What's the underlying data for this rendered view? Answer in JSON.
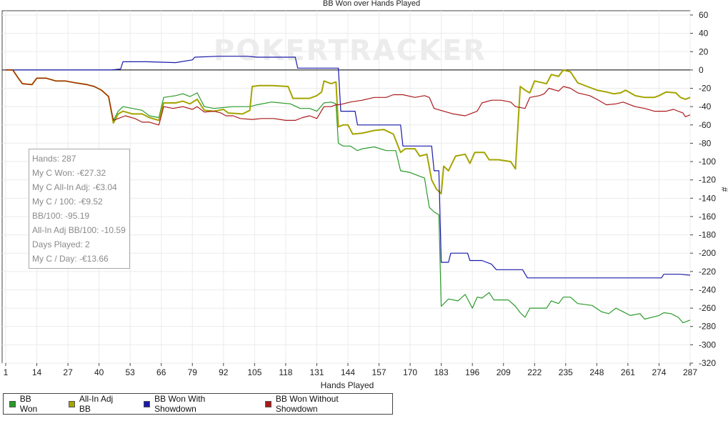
{
  "chart_data": {
    "type": "line",
    "title": "BB Won over Hands Played",
    "xlabel": "Hands Played",
    "ylabel": "#",
    "xlim": [
      1,
      287
    ],
    "ylim": [
      -320,
      60
    ],
    "x_ticks": [
      1,
      14,
      27,
      40,
      53,
      66,
      79,
      92,
      105,
      118,
      131,
      144,
      157,
      170,
      183,
      196,
      209,
      222,
      235,
      248,
      261,
      274,
      287
    ],
    "y_ticks": [
      60,
      40,
      20,
      0,
      -20,
      -40,
      -60,
      -80,
      -100,
      -120,
      -140,
      -160,
      -180,
      -200,
      -220,
      -240,
      -260,
      -280,
      -300,
      -320
    ],
    "grid": true,
    "watermark": "POKERTRACKER",
    "series": [
      {
        "name": "BB Won",
        "color": "#2a9a2a",
        "points": [
          [
            1,
            0
          ],
          [
            4,
            0
          ],
          [
            6,
            -8
          ],
          [
            8,
            -15
          ],
          [
            12,
            -16
          ],
          [
            14,
            -9
          ],
          [
            18,
            -9
          ],
          [
            22,
            -12
          ],
          [
            26,
            -12
          ],
          [
            30,
            -14
          ],
          [
            35,
            -16
          ],
          [
            38,
            -18
          ],
          [
            41,
            -22
          ],
          [
            44,
            -29
          ],
          [
            46,
            -55
          ],
          [
            48,
            -45
          ],
          [
            50,
            -40
          ],
          [
            54,
            -42
          ],
          [
            58,
            -44
          ],
          [
            61,
            -50
          ],
          [
            65,
            -52
          ],
          [
            67,
            -30
          ],
          [
            72,
            -28
          ],
          [
            75,
            -26
          ],
          [
            78,
            -29
          ],
          [
            81,
            -25
          ],
          [
            84,
            -40
          ],
          [
            88,
            -42
          ],
          [
            96,
            -40
          ],
          [
            103,
            -40
          ],
          [
            106,
            -38
          ],
          [
            112,
            -35
          ],
          [
            120,
            -37
          ],
          [
            124,
            -42
          ],
          [
            128,
            -42
          ],
          [
            131,
            -45
          ],
          [
            134,
            -36
          ],
          [
            137,
            -35
          ],
          [
            139,
            -37
          ],
          [
            140,
            -80
          ],
          [
            142,
            -83
          ],
          [
            145,
            -83
          ],
          [
            148,
            -88
          ],
          [
            150,
            -86
          ],
          [
            155,
            -84
          ],
          [
            160,
            -88
          ],
          [
            164,
            -88
          ],
          [
            166,
            -110
          ],
          [
            170,
            -112
          ],
          [
            173,
            -115
          ],
          [
            176,
            -118
          ],
          [
            178,
            -150
          ],
          [
            180,
            -155
          ],
          [
            182,
            -158
          ],
          [
            183,
            -258
          ],
          [
            186,
            -250
          ],
          [
            190,
            -252
          ],
          [
            193,
            -245
          ],
          [
            196,
            -260
          ],
          [
            198,
            -248
          ],
          [
            200,
            -249
          ],
          [
            203,
            -243
          ],
          [
            205,
            -251
          ],
          [
            211,
            -251
          ],
          [
            214,
            -258
          ],
          [
            216,
            -265
          ],
          [
            218,
            -270
          ],
          [
            220,
            -260
          ],
          [
            227,
            -260
          ],
          [
            229,
            -252
          ],
          [
            232,
            -255
          ],
          [
            234,
            -248
          ],
          [
            237,
            -248
          ],
          [
            240,
            -255
          ],
          [
            246,
            -257
          ],
          [
            250,
            -264
          ],
          [
            253,
            -266
          ],
          [
            256,
            -260
          ],
          [
            259,
            -264
          ],
          [
            262,
            -268
          ],
          [
            266,
            -266
          ],
          [
            268,
            -272
          ],
          [
            271,
            -270
          ],
          [
            274,
            -268
          ],
          [
            276,
            -265
          ],
          [
            279,
            -266
          ],
          [
            282,
            -270
          ],
          [
            284,
            -276
          ],
          [
            287,
            -273
          ]
        ]
      },
      {
        "name": "All-In Adj BB",
        "color": "#a4a400",
        "points": [
          [
            1,
            0
          ],
          [
            4,
            0
          ],
          [
            6,
            -8
          ],
          [
            8,
            -15
          ],
          [
            12,
            -16
          ],
          [
            14,
            -9
          ],
          [
            18,
            -9
          ],
          [
            22,
            -12
          ],
          [
            26,
            -12
          ],
          [
            30,
            -14
          ],
          [
            35,
            -16
          ],
          [
            38,
            -18
          ],
          [
            41,
            -22
          ],
          [
            44,
            -29
          ],
          [
            46,
            -58
          ],
          [
            48,
            -48
          ],
          [
            50,
            -45
          ],
          [
            54,
            -48
          ],
          [
            58,
            -48
          ],
          [
            61,
            -52
          ],
          [
            65,
            -55
          ],
          [
            67,
            -36
          ],
          [
            72,
            -36
          ],
          [
            75,
            -34
          ],
          [
            78,
            -37
          ],
          [
            81,
            -32
          ],
          [
            84,
            -44
          ],
          [
            88,
            -45
          ],
          [
            92,
            -43
          ],
          [
            94,
            -47
          ],
          [
            100,
            -48
          ],
          [
            103,
            -44
          ],
          [
            104,
            -18
          ],
          [
            107,
            -17
          ],
          [
            112,
            -17
          ],
          [
            119,
            -18
          ],
          [
            121,
            -31
          ],
          [
            128,
            -31
          ],
          [
            131,
            -28
          ],
          [
            133,
            -24
          ],
          [
            134,
            -12
          ],
          [
            137,
            -15
          ],
          [
            139,
            -13
          ],
          [
            140,
            -62
          ],
          [
            142,
            -60
          ],
          [
            144,
            -60
          ],
          [
            146,
            -70
          ],
          [
            150,
            -69
          ],
          [
            155,
            -66
          ],
          [
            159,
            -65
          ],
          [
            163,
            -70
          ],
          [
            166,
            -90
          ],
          [
            168,
            -86
          ],
          [
            172,
            -86
          ],
          [
            174,
            -94
          ],
          [
            177,
            -92
          ],
          [
            179,
            -120
          ],
          [
            181,
            -130
          ],
          [
            183,
            -135
          ],
          [
            184,
            -105
          ],
          [
            186,
            -110
          ],
          [
            189,
            -94
          ],
          [
            193,
            -92
          ],
          [
            195,
            -102
          ],
          [
            197,
            -90
          ],
          [
            201,
            -90
          ],
          [
            203,
            -98
          ],
          [
            207,
            -98
          ],
          [
            212,
            -100
          ],
          [
            214,
            -108
          ],
          [
            216,
            -18
          ],
          [
            218,
            -22
          ],
          [
            220,
            -25
          ],
          [
            222,
            -12
          ],
          [
            227,
            -15
          ],
          [
            229,
            -5
          ],
          [
            232,
            -7
          ],
          [
            234,
            0
          ],
          [
            237,
            -2
          ],
          [
            240,
            -14
          ],
          [
            244,
            -18
          ],
          [
            248,
            -22
          ],
          [
            252,
            -24
          ],
          [
            255,
            -26
          ],
          [
            258,
            -25
          ],
          [
            260,
            -22
          ],
          [
            264,
            -28
          ],
          [
            268,
            -30
          ],
          [
            272,
            -30
          ],
          [
            274,
            -28
          ],
          [
            277,
            -24
          ],
          [
            281,
            -25
          ],
          [
            283,
            -30
          ],
          [
            285,
            -32
          ],
          [
            287,
            -30
          ]
        ]
      },
      {
        "name": "BB Won With Showdown",
        "color": "#1a1aaa",
        "points": [
          [
            1,
            0
          ],
          [
            45,
            0
          ],
          [
            49,
            1
          ],
          [
            50,
            9
          ],
          [
            60,
            9
          ],
          [
            72,
            8
          ],
          [
            79,
            11
          ],
          [
            80,
            14
          ],
          [
            90,
            15
          ],
          [
            102,
            15
          ],
          [
            106,
            14
          ],
          [
            122,
            14
          ],
          [
            123,
            2
          ],
          [
            137,
            2
          ],
          [
            140,
            2
          ],
          [
            141,
            -45
          ],
          [
            147,
            -45
          ],
          [
            148,
            -60
          ],
          [
            166,
            -60
          ],
          [
            167,
            -83
          ],
          [
            179,
            -83
          ],
          [
            180,
            -110
          ],
          [
            182,
            -110
          ],
          [
            183,
            -210
          ],
          [
            186,
            -210
          ],
          [
            187,
            -200
          ],
          [
            194,
            -200
          ],
          [
            195,
            -208
          ],
          [
            200,
            -208
          ],
          [
            204,
            -212
          ],
          [
            206,
            -218
          ],
          [
            217,
            -218
          ],
          [
            219,
            -227
          ],
          [
            275,
            -227
          ],
          [
            276,
            -223
          ],
          [
            283,
            -223
          ],
          [
            287,
            -224
          ]
        ]
      },
      {
        "name": "BB Won Without Showdown",
        "color": "#aa1a1a",
        "points": [
          [
            1,
            0
          ],
          [
            4,
            0
          ],
          [
            6,
            -8
          ],
          [
            8,
            -15
          ],
          [
            12,
            -16
          ],
          [
            14,
            -9
          ],
          [
            18,
            -9
          ],
          [
            22,
            -12
          ],
          [
            26,
            -12
          ],
          [
            30,
            -14
          ],
          [
            35,
            -16
          ],
          [
            38,
            -18
          ],
          [
            41,
            -22
          ],
          [
            44,
            -29
          ],
          [
            46,
            -55
          ],
          [
            48,
            -53
          ],
          [
            51,
            -50
          ],
          [
            55,
            -53
          ],
          [
            58,
            -57
          ],
          [
            61,
            -57
          ],
          [
            65,
            -60
          ],
          [
            67,
            -40
          ],
          [
            71,
            -42
          ],
          [
            75,
            -40
          ],
          [
            79,
            -43
          ],
          [
            81,
            -40
          ],
          [
            84,
            -46
          ],
          [
            88,
            -45
          ],
          [
            91,
            -47
          ],
          [
            93,
            -50
          ],
          [
            96,
            -50
          ],
          [
            99,
            -53
          ],
          [
            104,
            -54
          ],
          [
            108,
            -53
          ],
          [
            113,
            -53
          ],
          [
            118,
            -55
          ],
          [
            122,
            -55
          ],
          [
            125,
            -52
          ],
          [
            128,
            -50
          ],
          [
            131,
            -53
          ],
          [
            134,
            -40
          ],
          [
            137,
            -40
          ],
          [
            139,
            -38
          ],
          [
            140,
            -38
          ],
          [
            142,
            -37
          ],
          [
            145,
            -35
          ],
          [
            150,
            -33
          ],
          [
            155,
            -30
          ],
          [
            160,
            -30
          ],
          [
            163,
            -27
          ],
          [
            167,
            -27
          ],
          [
            172,
            -30
          ],
          [
            176,
            -28
          ],
          [
            178,
            -30
          ],
          [
            180,
            -42
          ],
          [
            184,
            -45
          ],
          [
            188,
            -48
          ],
          [
            193,
            -50
          ],
          [
            195,
            -48
          ],
          [
            198,
            -45
          ],
          [
            200,
            -36
          ],
          [
            204,
            -33
          ],
          [
            208,
            -33
          ],
          [
            212,
            -35
          ],
          [
            214,
            -40
          ],
          [
            218,
            -42
          ],
          [
            220,
            -30
          ],
          [
            224,
            -28
          ],
          [
            226,
            -26
          ],
          [
            228,
            -20
          ],
          [
            232,
            -23
          ],
          [
            234,
            -18
          ],
          [
            237,
            -20
          ],
          [
            240,
            -25
          ],
          [
            245,
            -28
          ],
          [
            248,
            -32
          ],
          [
            252,
            -38
          ],
          [
            256,
            -37
          ],
          [
            259,
            -35
          ],
          [
            264,
            -40
          ],
          [
            268,
            -42
          ],
          [
            272,
            -45
          ],
          [
            277,
            -45
          ],
          [
            280,
            -43
          ],
          [
            284,
            -47
          ],
          [
            285,
            -51
          ],
          [
            287,
            -49
          ]
        ]
      }
    ]
  },
  "stats_box": {
    "lines": [
      "Hands: 287",
      "My C Won: -€27.32",
      "My C All-In Adj: -€3.04",
      "My C / 100: -€9.52",
      "BB/100: -95.19",
      "All-In Adj BB/100: -10.59",
      "Days Played: 2",
      "My C / Day: -€13.66"
    ]
  },
  "legend": {
    "items": [
      {
        "label": "BB Won",
        "color": "#2a9a2a"
      },
      {
        "label": "All-In Adj BB",
        "color": "#a4a400"
      },
      {
        "label": "BB Won With Showdown",
        "color": "#1a1aaa"
      },
      {
        "label": "BB Won Without Showdown",
        "color": "#aa1a1a"
      }
    ]
  }
}
